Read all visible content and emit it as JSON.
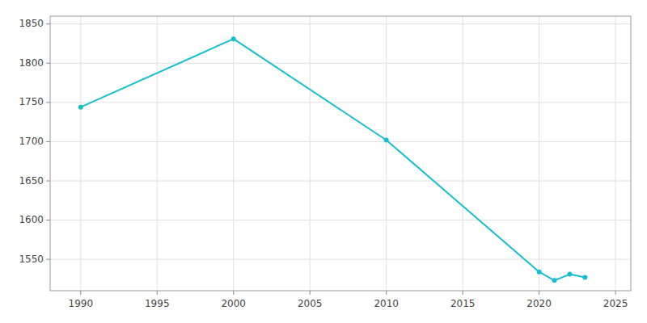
{
  "chart_data": {
    "type": "line",
    "x": [
      1990,
      2000,
      2010,
      2020,
      2021,
      2022,
      2023
    ],
    "values": [
      1744,
      1831,
      1702,
      1534,
      1523,
      1531,
      1527
    ],
    "color": "#17becf",
    "marker": "circle",
    "xlim": [
      1988,
      2026
    ],
    "ylim": [
      1510,
      1860
    ],
    "xticks": [
      1990,
      1995,
      2000,
      2005,
      2010,
      2015,
      2020,
      2025
    ],
    "yticks": [
      1550,
      1600,
      1650,
      1700,
      1750,
      1800,
      1850
    ],
    "grid": true
  }
}
